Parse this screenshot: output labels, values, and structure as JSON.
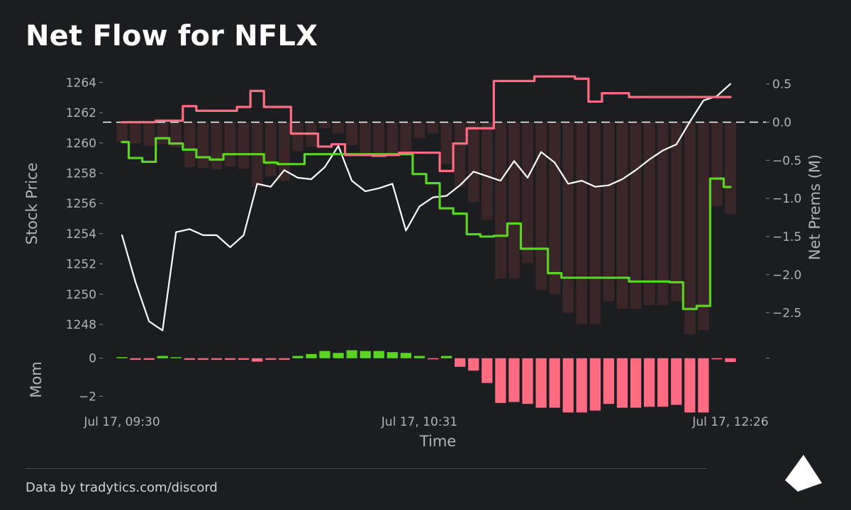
{
  "title": "Net Flow for NFLX",
  "footer": "Data by tradytics.com/discord",
  "colors": {
    "background": "#1c1d21",
    "price_line": "#ffffff",
    "green_line": "#5ad423",
    "pink_line": "#ff6b81",
    "net_bars": "#3a2629",
    "mom_positive": "#5ad423",
    "mom_negative": "#ff6b81",
    "zero_line": "#ffffff"
  },
  "chart_data": [
    {
      "type": "line",
      "title": "Net Flow for NFLX",
      "xlabel": "Time",
      "x_ticks": [
        {
          "index": 0,
          "label": "Jul 17, 09:30"
        },
        {
          "index": 22,
          "label": "Jul 17, 10:31"
        },
        {
          "index": 45,
          "label": "Jul 17, 12:26"
        }
      ],
      "left_axis": {
        "label": "Stock Price",
        "ylim": [
          1246.5,
          1265
        ],
        "ticks": [
          1248,
          1250,
          1252,
          1254,
          1256,
          1258,
          1260,
          1262,
          1264
        ]
      },
      "right_axis": {
        "label": "Net Prems (M)",
        "ylim": [
          -2.95,
          0.72
        ],
        "ticks": [
          "0.5",
          "0.0",
          "−0.5",
          "−1.0",
          "−1.5",
          "−2.0",
          "−2.5"
        ],
        "tick_values": [
          0.5,
          0.0,
          -0.5,
          -1.0,
          -1.5,
          -2.0,
          -2.5
        ]
      },
      "series": [
        {
          "axis": "left",
          "style": "line",
          "color": "price",
          "values": [
            1253.9,
            1250.8,
            1248.2,
            1247.6,
            1254.1,
            1254.3,
            1253.9,
            1253.9,
            1253.1,
            1253.9,
            1257.3,
            1257.1,
            1258.2,
            1257.7,
            1257.6,
            1258.4,
            1259.8,
            1257.5,
            1256.8,
            1257.0,
            1257.3,
            1254.2,
            1255.8,
            1256.4,
            1256.5,
            1257.2,
            1258.1,
            1257.8,
            1257.5,
            1258.8,
            1257.7,
            1259.4,
            1258.7,
            1257.3,
            1257.5,
            1257.1,
            1257.2,
            1257.6,
            1258.2,
            1258.9,
            1259.5,
            1259.9,
            1261.4,
            1262.8,
            1263.1,
            1263.9
          ]
        },
        {
          "axis": "right",
          "style": "step",
          "color": "green",
          "values": [
            -0.26,
            -0.47,
            -0.52,
            -0.21,
            -0.28,
            -0.36,
            -0.46,
            -0.49,
            -0.42,
            -0.42,
            -0.42,
            -0.53,
            -0.55,
            -0.55,
            -0.42,
            -0.42,
            -0.42,
            -0.42,
            -0.42,
            -0.42,
            -0.42,
            -0.42,
            -0.68,
            -0.8,
            -1.13,
            -1.2,
            -1.47,
            -1.5,
            -1.49,
            -1.33,
            -1.66,
            -1.66,
            -1.98,
            -2.04,
            -2.04,
            -2.04,
            -2.04,
            -2.04,
            -2.09,
            -2.09,
            -2.09,
            -2.1,
            -2.45,
            -2.41,
            -0.74,
            -0.85
          ]
        },
        {
          "axis": "right",
          "style": "step",
          "color": "pink",
          "values": [
            0.0,
            0.0,
            0.0,
            0.02,
            0.02,
            0.21,
            0.15,
            0.15,
            0.15,
            0.2,
            0.41,
            0.2,
            0.2,
            -0.15,
            -0.15,
            -0.32,
            -0.29,
            -0.43,
            -0.43,
            -0.44,
            -0.43,
            -0.4,
            -0.4,
            -0.4,
            -0.64,
            -0.28,
            -0.08,
            -0.08,
            0.54,
            0.54,
            0.54,
            0.6,
            0.6,
            0.6,
            0.57,
            0.27,
            0.38,
            0.38,
            0.33,
            0.33,
            0.33,
            0.33,
            0.33,
            0.33,
            0.33,
            0.33
          ]
        },
        {
          "axis": "right",
          "style": "bars",
          "color": "net_bars",
          "values": [
            -0.26,
            -0.28,
            -0.31,
            -0.29,
            -0.33,
            -0.59,
            -0.6,
            -0.62,
            -0.58,
            -0.61,
            -0.85,
            -0.71,
            -0.77,
            -0.38,
            -0.32,
            -0.08,
            -0.15,
            -0.3,
            -0.44,
            -0.4,
            -0.42,
            -0.38,
            -0.21,
            -0.15,
            -0.55,
            -0.85,
            -1.05,
            -1.28,
            -2.05,
            -2.05,
            -1.85,
            -2.2,
            -2.25,
            -2.5,
            -2.65,
            -2.65,
            -2.35,
            -2.45,
            -2.45,
            -2.4,
            -2.4,
            -2.35,
            -2.78,
            -2.73,
            -1.1,
            -1.2
          ]
        }
      ]
    },
    {
      "type": "bar",
      "ylabel": "Mom",
      "ylim": [
        -2.95,
        0.4
      ],
      "ticks": [
        {
          "value": 0,
          "label": "0"
        },
        {
          "value": -2,
          "label": "−2"
        }
      ],
      "values": [
        0.0,
        -0.08,
        -0.08,
        0.12,
        0.02,
        -0.08,
        -0.08,
        -0.08,
        -0.08,
        -0.08,
        -0.18,
        -0.08,
        -0.08,
        0.12,
        0.22,
        0.38,
        0.28,
        0.42,
        0.38,
        0.38,
        0.32,
        0.28,
        0.12,
        -0.02,
        0.12,
        -0.45,
        -0.65,
        -1.3,
        -2.35,
        -2.3,
        -2.4,
        -2.6,
        -2.6,
        -2.85,
        -2.85,
        -2.75,
        -2.4,
        -2.6,
        -2.6,
        -2.55,
        -2.55,
        -2.45,
        -2.85,
        -2.85,
        -0.02,
        -0.2
      ]
    }
  ]
}
